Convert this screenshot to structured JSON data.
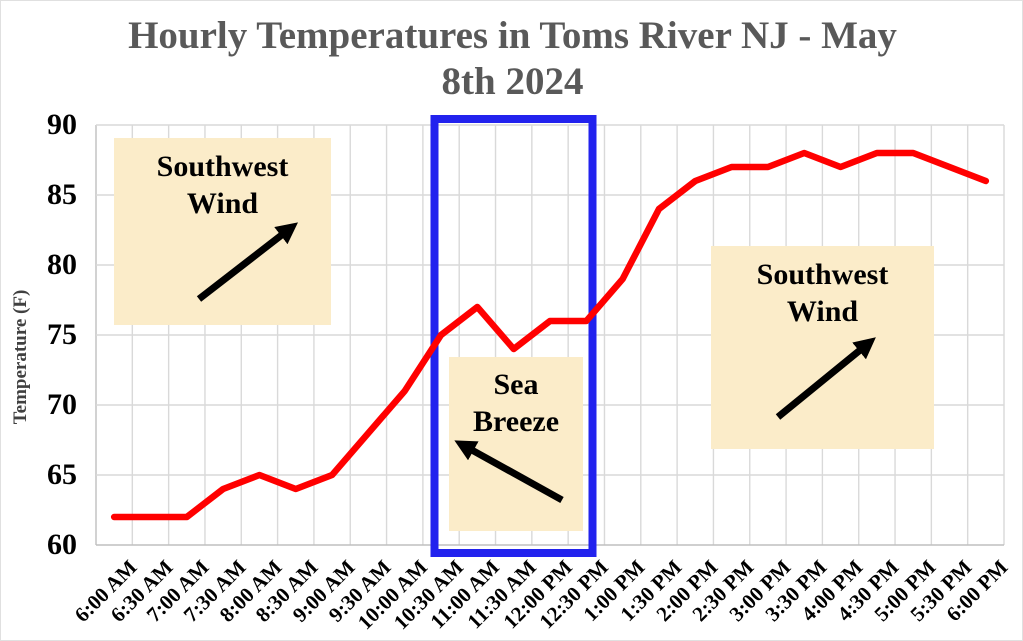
{
  "title": {
    "line1": "Hourly Temperatures in Toms River NJ - May",
    "line2": "8th 2024"
  },
  "chart_data": {
    "type": "line",
    "x": [
      "6:00 AM",
      "6:30 AM",
      "7:00 AM",
      "7:30 AM",
      "8:00 AM",
      "8:30 AM",
      "9:00 AM",
      "9:30 AM",
      "10:00 AM",
      "10:30 AM",
      "11:00 AM",
      "11:30 AM",
      "12:00 PM",
      "12:30 PM",
      "1:00 PM",
      "1:30 PM",
      "2:00 PM",
      "2:30 PM",
      "3:00 PM",
      "3:30 PM",
      "4:00 PM",
      "4:30 PM",
      "5:00 PM",
      "5:30 PM",
      "6:00 PM"
    ],
    "series": [
      {
        "name": "Hourly Temperature",
        "color": "#FF0000",
        "values": [
          62,
          62,
          62,
          64,
          65,
          64,
          65,
          68,
          71,
          75,
          77,
          74,
          76,
          76,
          79,
          84,
          86,
          87,
          87,
          88,
          87,
          88,
          88,
          87,
          86
        ]
      }
    ],
    "ylabel": "Temperature (F)",
    "yticks": [
      90,
      85,
      80,
      75,
      70,
      65,
      60
    ],
    "ylim": [
      60,
      90
    ],
    "grid": true,
    "legend_position": "none",
    "annotations": [
      {
        "id": "southwest-wind-left",
        "line1": "Southwest",
        "line2": "Wind",
        "arrow_direction": "northeast",
        "box_color": "#FBECC9"
      },
      {
        "id": "sea-breeze",
        "line1": "Sea",
        "line2": "Breeze",
        "arrow_direction": "northwest",
        "box_color": "#FBECC9"
      },
      {
        "id": "southwest-wind-right",
        "line1": "Southwest",
        "line2": "Wind",
        "arrow_direction": "northeast",
        "box_color": "#FBECC9"
      },
      {
        "id": "sea-breeze-highlight-box",
        "shape": "rectangle",
        "color": "#2222EE",
        "x_start": "10:30 AM",
        "x_end": "12:30 PM"
      }
    ]
  },
  "colors": {
    "line": "#FF0000",
    "highlight_rect": "#2222EE",
    "annotation_fill": "#FBECC9",
    "gridline": "#D9D9D9",
    "axis_line": "#BFBFBF",
    "title_text": "#595959",
    "tick_text": "#000000"
  }
}
